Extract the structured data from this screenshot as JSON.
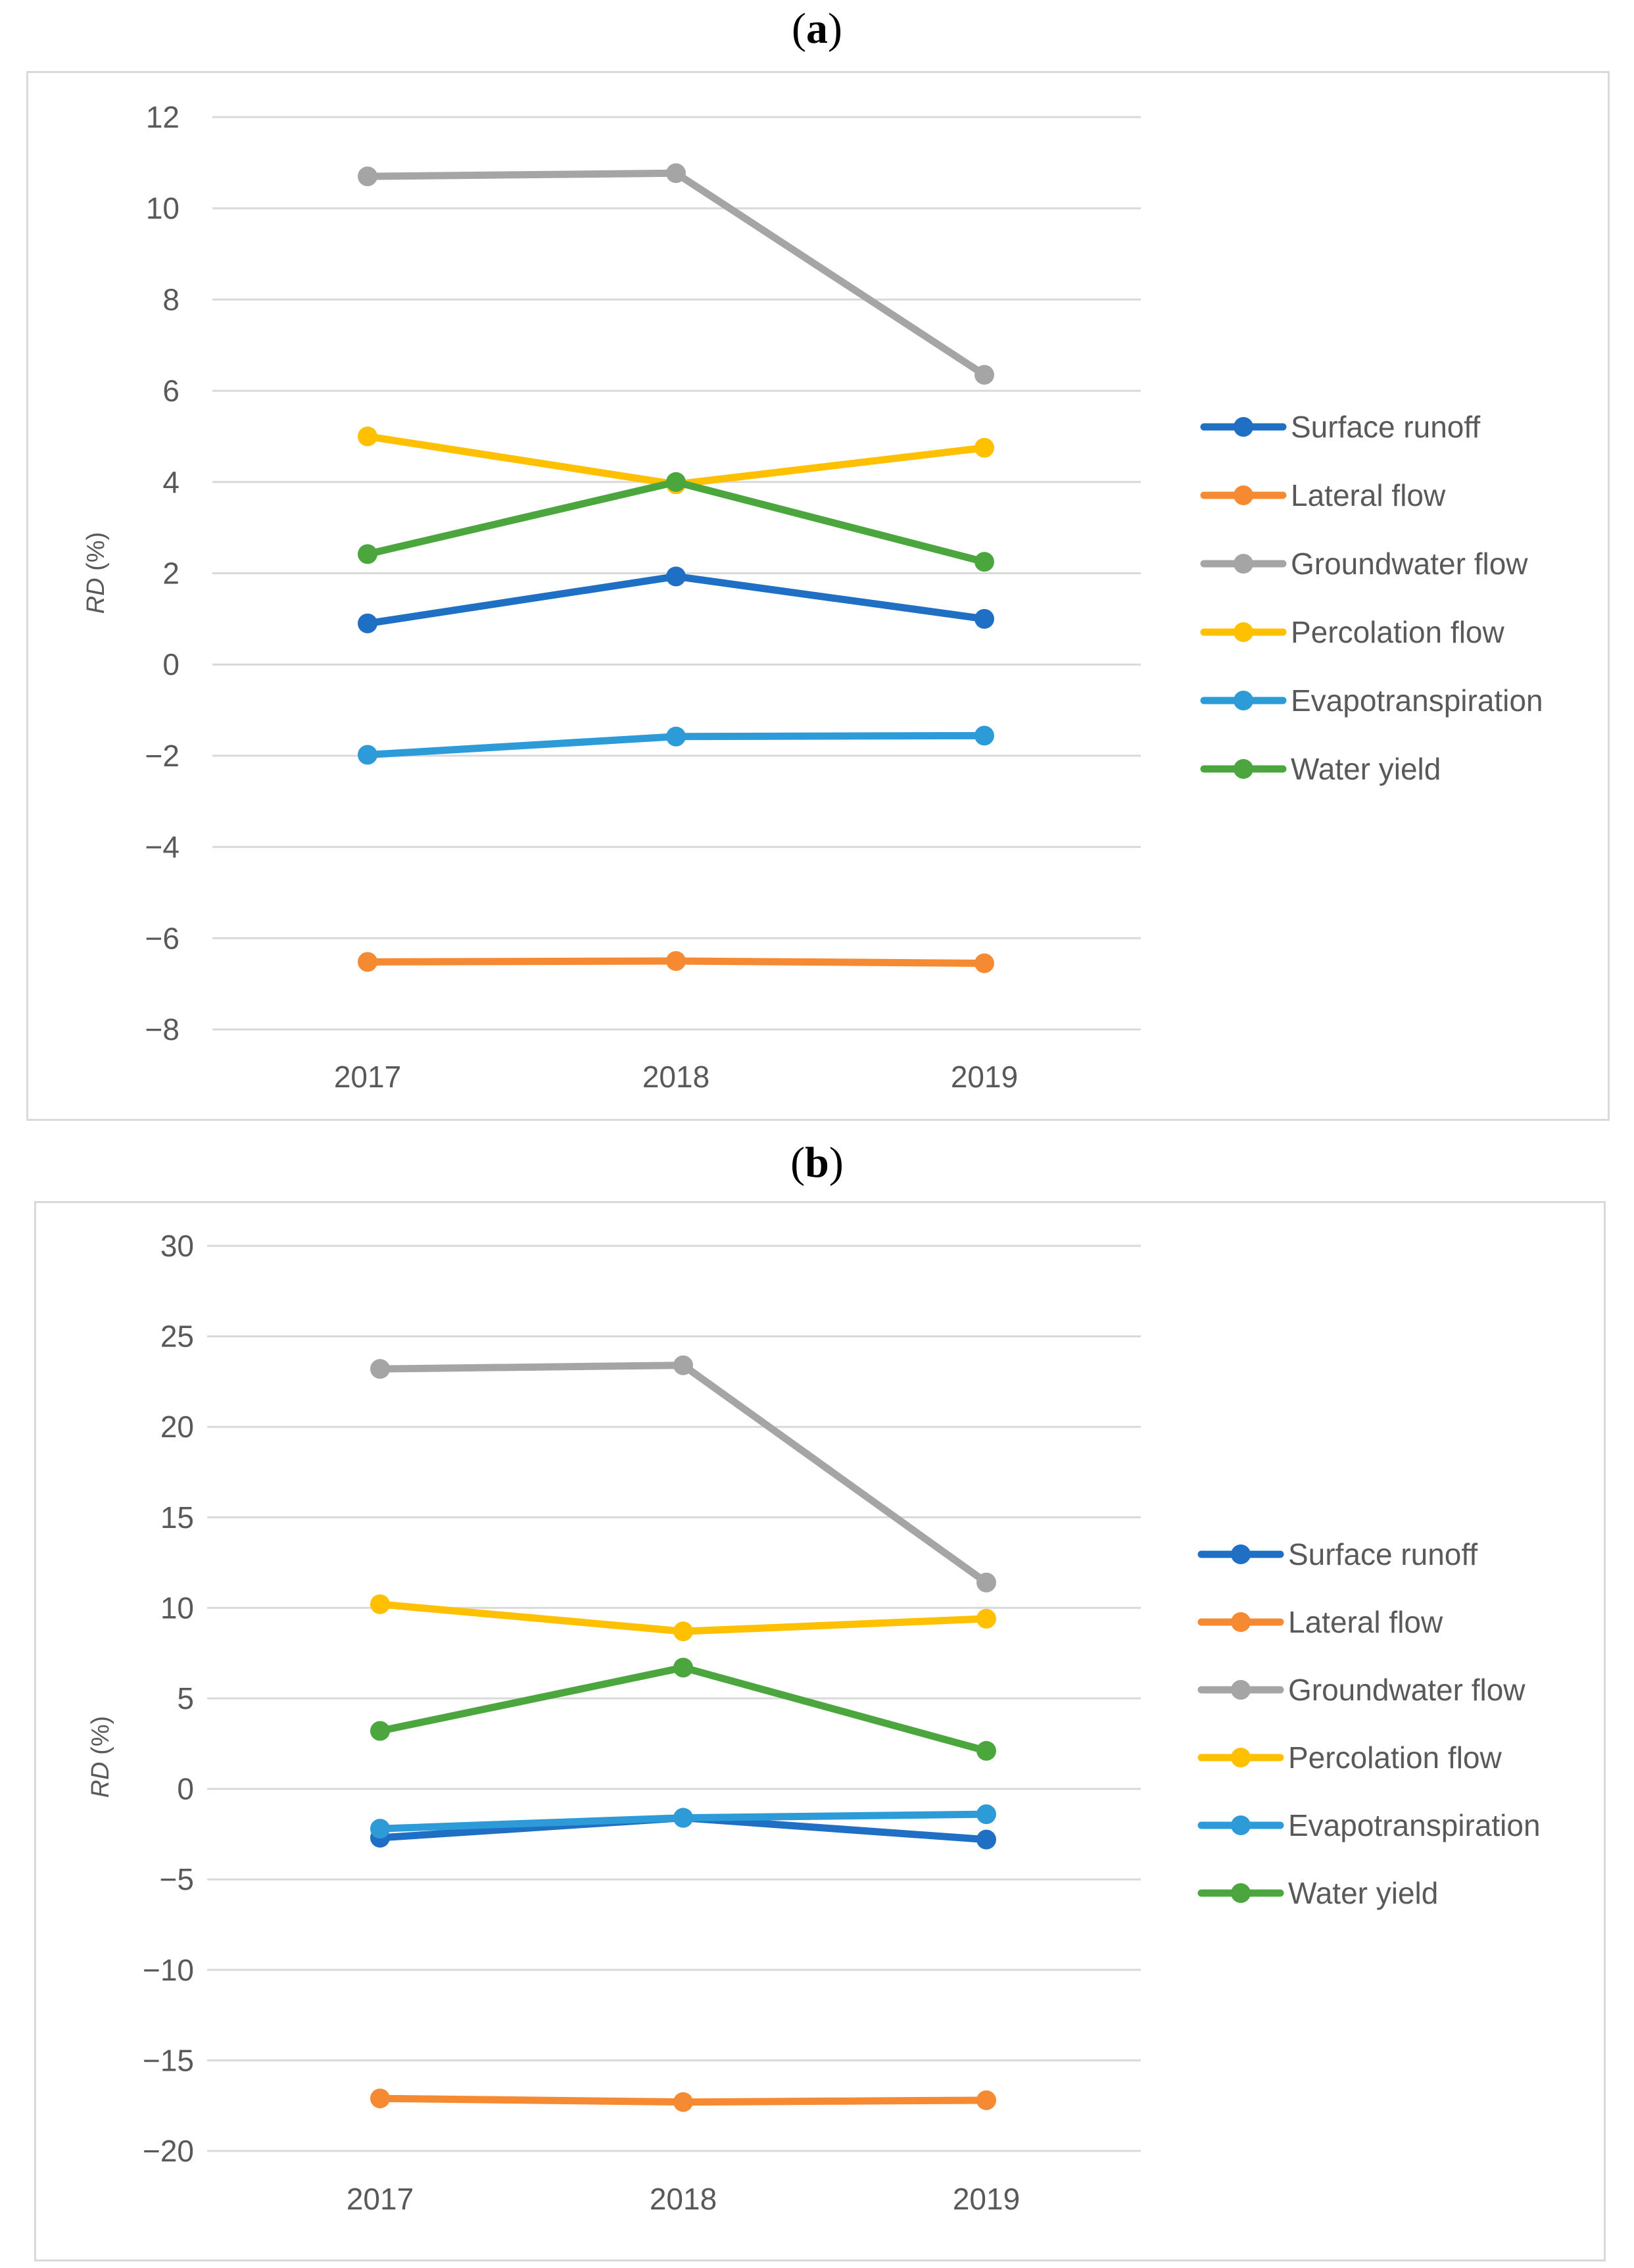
{
  "chart_data": [
    {
      "type": "line",
      "panel_label": "a",
      "x": [
        "2017",
        "2018",
        "2019"
      ],
      "ylabel_prefix": "RD",
      "ylabel_suffix": " (%)",
      "ylim": [
        -8,
        12
      ],
      "yticks": [
        12,
        10,
        8,
        6,
        4,
        2,
        0,
        -2,
        -4,
        -6,
        -8
      ],
      "ytick_labels": [
        "12",
        "10",
        "8",
        "6",
        "4",
        "2",
        "0",
        "−2",
        "−4",
        "−6",
        "−8"
      ],
      "grid": true,
      "legend_position": "right",
      "series": [
        {
          "name": "Surface runoff",
          "color": "#1f6fc5",
          "values": [
            0.9,
            1.93,
            1.0
          ]
        },
        {
          "name": "Lateral flow",
          "color": "#f58a33",
          "values": [
            -6.52,
            -6.5,
            -6.55
          ]
        },
        {
          "name": "Groundwater flow",
          "color": "#a5a5a5",
          "values": [
            10.7,
            10.77,
            6.35
          ]
        },
        {
          "name": "Percolation flow",
          "color": "#ffc000",
          "values": [
            5.0,
            3.95,
            4.75
          ]
        },
        {
          "name": "Evapotranspiration",
          "color": "#2e9bd9",
          "values": [
            -1.98,
            -1.58,
            -1.56
          ]
        },
        {
          "name": "Water yield",
          "color": "#4aa63d",
          "values": [
            2.42,
            4.0,
            2.25
          ]
        }
      ]
    },
    {
      "type": "line",
      "panel_label": "b",
      "x": [
        "2017",
        "2018",
        "2019"
      ],
      "ylabel_prefix": "RD",
      "ylabel_suffix": " (%)",
      "ylim": [
        -20,
        30
      ],
      "yticks": [
        30,
        25,
        20,
        15,
        10,
        5,
        0,
        -5,
        -10,
        -15,
        -20
      ],
      "ytick_labels": [
        "30",
        "25",
        "20",
        "15",
        "10",
        "5",
        "0",
        "−5",
        "−10",
        "−15",
        "−20"
      ],
      "grid": true,
      "legend_position": "right",
      "series": [
        {
          "name": "Surface runoff",
          "color": "#1f6fc5",
          "values": [
            -2.7,
            -1.6,
            -2.8
          ]
        },
        {
          "name": "Lateral flow",
          "color": "#f58a33",
          "values": [
            -17.1,
            -17.3,
            -17.2
          ]
        },
        {
          "name": "Groundwater flow",
          "color": "#a5a5a5",
          "values": [
            23.2,
            23.4,
            11.4
          ]
        },
        {
          "name": "Percolation flow",
          "color": "#ffc000",
          "values": [
            10.2,
            8.7,
            9.4
          ]
        },
        {
          "name": "Evapotranspiration",
          "color": "#2e9bd9",
          "values": [
            -2.2,
            -1.6,
            -1.4
          ]
        },
        {
          "name": "Water yield",
          "color": "#4aa63d",
          "values": [
            3.2,
            6.7,
            2.1
          ]
        }
      ]
    }
  ]
}
